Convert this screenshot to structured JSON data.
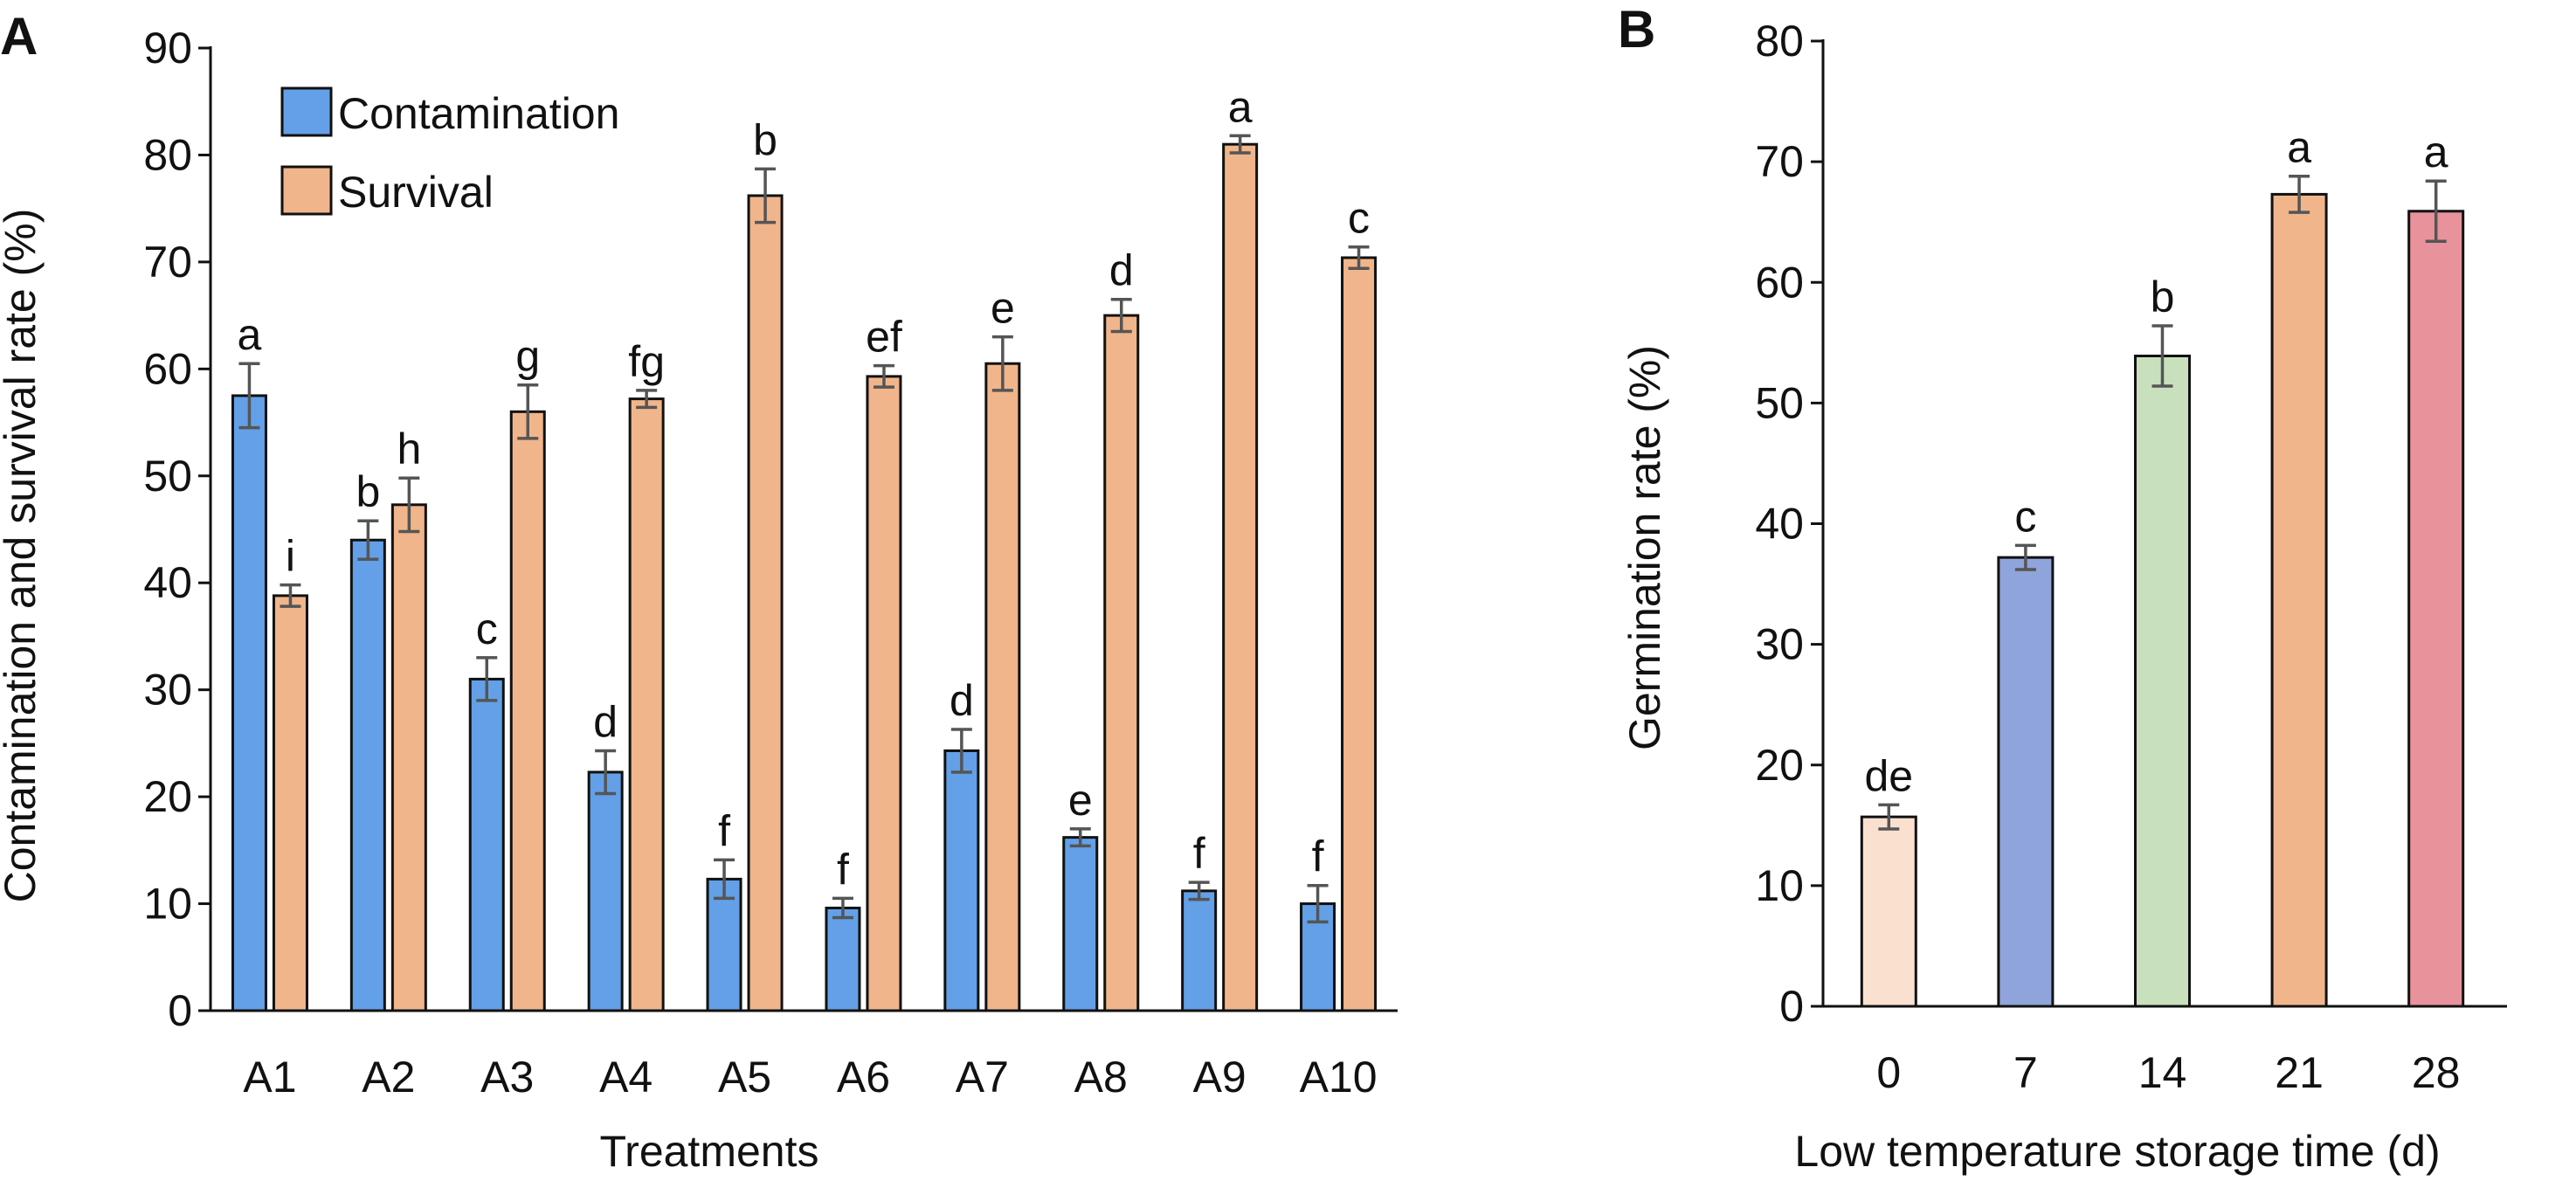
{
  "panels": {
    "a": {
      "label": "A"
    },
    "b": {
      "label": "B"
    }
  },
  "colors": {
    "axis": "#111111",
    "errorbar": "#555555",
    "contamination": "#63A0E8",
    "survival": "#F1B58B",
    "b_bars": [
      "#FAE0CF",
      "#8FA4DB",
      "#C8E1BC",
      "#F1B58B",
      "#E8929B"
    ]
  },
  "chart_data": [
    {
      "type": "bar",
      "panel": "A",
      "categories": [
        "A1",
        "A2",
        "A3",
        "A4",
        "A5",
        "A6",
        "A7",
        "A8",
        "A9",
        "A10"
      ],
      "series": [
        {
          "name": "Contamination",
          "values": [
            57.5,
            44,
            31,
            22.3,
            12.3,
            9.6,
            24.3,
            16.2,
            11.2,
            10
          ],
          "errors": [
            3,
            1.8,
            2,
            2,
            1.8,
            0.9,
            2,
            0.8,
            0.8,
            1.7
          ],
          "letters": [
            "a",
            "b",
            "c",
            "d",
            "f",
            "f",
            "d",
            "e",
            "f",
            "f"
          ]
        },
        {
          "name": "Survival",
          "values": [
            38.8,
            47.3,
            56,
            57.2,
            76.2,
            59.3,
            60.5,
            65,
            81,
            70.4
          ],
          "errors": [
            1,
            2.5,
            2.5,
            0.8,
            2.5,
            1,
            2.5,
            1.5,
            0.8,
            1
          ],
          "letters": [
            "i",
            "h",
            "g",
            "fg",
            "b",
            "ef",
            "e",
            "d",
            "a",
            "c"
          ]
        }
      ],
      "xlabel": "Treatments",
      "ylabel": "Contamination and survival rate (%)",
      "ylim": [
        0,
        90
      ],
      "yticks": [
        "0",
        "10",
        "20",
        "30",
        "40",
        "50",
        "60",
        "70",
        "80",
        "90"
      ],
      "legend_position": "top-left",
      "grid": false
    },
    {
      "type": "bar",
      "panel": "B",
      "categories": [
        "0",
        "7",
        "14",
        "21",
        "28"
      ],
      "values": [
        15.7,
        37.2,
        53.9,
        67.3,
        65.9
      ],
      "errors": [
        1,
        1,
        2.5,
        1.5,
        2.5
      ],
      "letters": [
        "de",
        "c",
        "b",
        "a",
        "a"
      ],
      "xlabel": "Low temperature storage time (d)",
      "ylabel": "Germination rate (%)",
      "ylim": [
        0,
        80
      ],
      "yticks": [
        "0",
        "10",
        "20",
        "30",
        "40",
        "50",
        "60",
        "70",
        "80"
      ],
      "grid": false
    }
  ]
}
